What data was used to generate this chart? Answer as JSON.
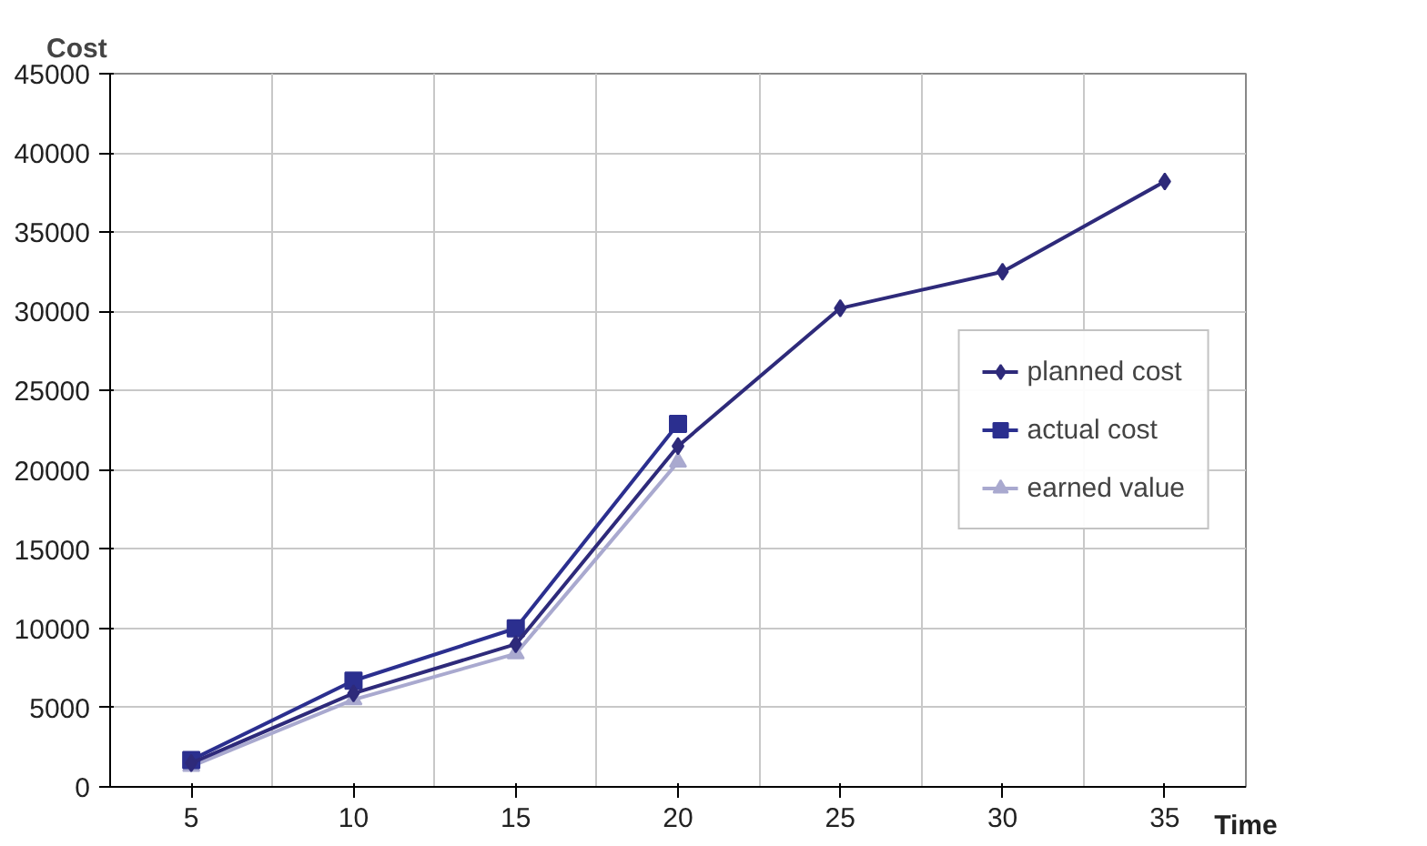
{
  "chart_data": {
    "type": "line",
    "xlabel": "Time",
    "ylabel": "Cost",
    "categories": [
      "5",
      "10",
      "15",
      "20",
      "25",
      "30",
      "35"
    ],
    "series": [
      {
        "name": "planned cost",
        "color": "#2e2a7a",
        "marker": "diamond",
        "values": [
          1500,
          5900,
          9000,
          21500,
          30200,
          32500,
          38200
        ]
      },
      {
        "name": "actual cost",
        "color": "#2b2f8f",
        "marker": "square",
        "values": [
          1700,
          6700,
          10000,
          22900,
          null,
          null,
          null
        ]
      },
      {
        "name": "earned value",
        "color": "#a9a9cf",
        "marker": "triangle",
        "values": [
          1300,
          5500,
          8400,
          20500,
          null,
          null,
          null
        ]
      }
    ],
    "ylim": [
      0,
      45000
    ],
    "yticks": [
      0,
      5000,
      10000,
      15000,
      20000,
      25000,
      30000,
      35000,
      40000,
      45000
    ],
    "grid": true,
    "legend": "right",
    "line_style": "solid"
  }
}
